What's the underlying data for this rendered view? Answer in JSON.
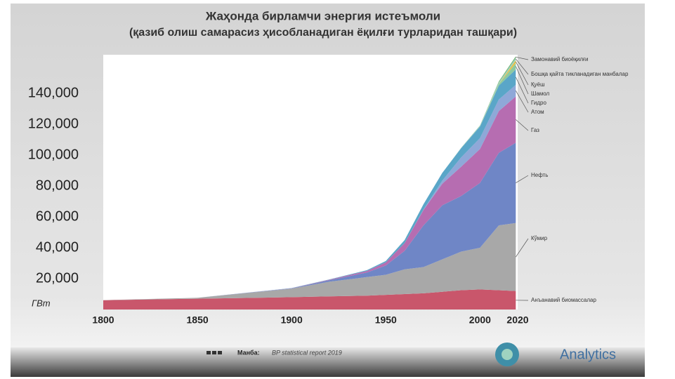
{
  "chart_data": {
    "type": "stacked-area",
    "title": "Жаҳонда бирламчи энергия истеъмоли",
    "subtitle": "(қазиб олиш самарасиз ҳисобланадиган ёқилғи турларидан ташқари)",
    "y_label": "ГВт",
    "source_label": "Манба:",
    "source": "BP statistical report 2019",
    "logo": "Analytics",
    "x": [
      1800,
      1850,
      1900,
      1920,
      1940,
      1950,
      1960,
      1970,
      1980,
      1990,
      2000,
      2010,
      2019
    ],
    "xlim": [
      1800,
      2020
    ],
    "xticks": [
      1800,
      1850,
      1900,
      1950,
      2000,
      2020
    ],
    "ylim": [
      0,
      165000
    ],
    "yticks": [
      {
        "value": 20000,
        "label": "20,000"
      },
      {
        "value": 40000,
        "label": "40,000"
      },
      {
        "value": 60000,
        "label": "60,000"
      },
      {
        "value": 80000,
        "label": "80,000"
      },
      {
        "value": 100000,
        "label": "100,000"
      },
      {
        "value": 120000,
        "label": "120,000"
      },
      {
        "value": 140000,
        "label": "140,000"
      }
    ],
    "series": [
      {
        "name": "Анъанавий биомассалар",
        "color": "#c9566b",
        "values": [
          6000,
          7000,
          8000,
          8500,
          9000,
          9500,
          10000,
          10500,
          11500,
          12500,
          13000,
          12500,
          12000
        ]
      },
      {
        "name": "Кўмир",
        "color": "#a8a8a8",
        "values": [
          100,
          600,
          5500,
          9500,
          12000,
          13000,
          16000,
          17000,
          21000,
          25000,
          27000,
          42000,
          44000
        ]
      },
      {
        "name": "Нефть",
        "color": "#6f86c6",
        "values": [
          0,
          0,
          200,
          1000,
          3000,
          6000,
          12000,
          27000,
          35000,
          36000,
          42000,
          47000,
          52000
        ]
      },
      {
        "name": "Газ",
        "color": "#b66db1",
        "values": [
          0,
          0,
          100,
          300,
          1000,
          2000,
          5000,
          10000,
          14000,
          19000,
          22000,
          27000,
          30000
        ]
      },
      {
        "name": "Атом",
        "color": "#8fa8d8",
        "values": [
          0,
          0,
          0,
          0,
          0,
          0,
          0,
          200,
          2000,
          6000,
          7000,
          7500,
          7500
        ]
      },
      {
        "name": "Гидро",
        "color": "#5aa6c8",
        "values": [
          0,
          0,
          100,
          200,
          500,
          900,
          2000,
          3500,
          5000,
          6000,
          7500,
          9000,
          10000
        ]
      },
      {
        "name": "Шамол",
        "color": "#8dc9a0",
        "values": [
          0,
          0,
          0,
          0,
          0,
          0,
          0,
          0,
          0,
          0,
          100,
          1000,
          4000
        ]
      },
      {
        "name": "Қуёш",
        "color": "#e8c24a",
        "values": [
          0,
          0,
          0,
          0,
          0,
          0,
          0,
          0,
          0,
          0,
          0,
          100,
          2000
        ]
      },
      {
        "name": "Бошқа қайта тикланадиган манбалар",
        "color": "#9dd0c0",
        "values": [
          0,
          0,
          0,
          0,
          0,
          0,
          0,
          0,
          0,
          300,
          500,
          1000,
          1500
        ]
      },
      {
        "name": "Замонавий биоёқилғи",
        "color": "#6fb36f",
        "values": [
          0,
          0,
          0,
          0,
          0,
          0,
          0,
          0,
          0,
          0,
          100,
          600,
          1000
        ]
      }
    ]
  }
}
